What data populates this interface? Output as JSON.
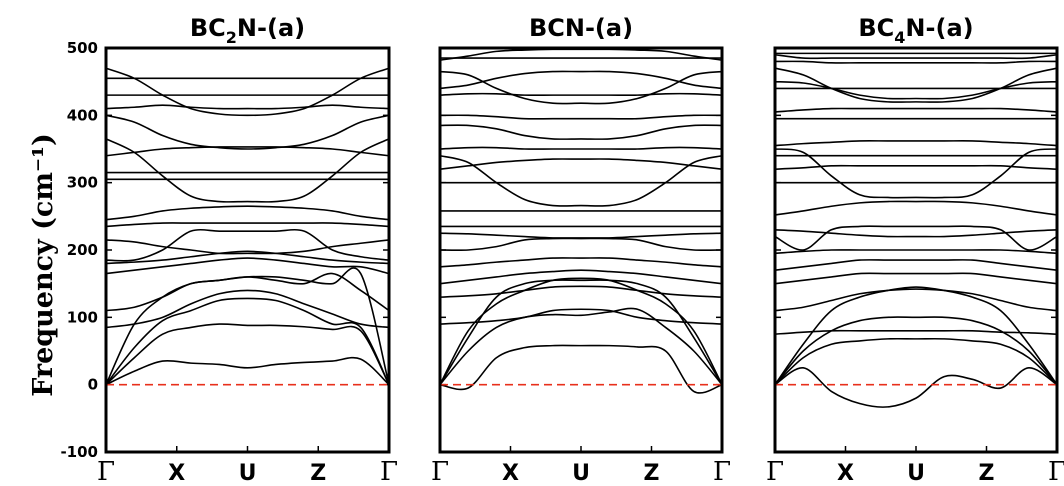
{
  "chart_data": {
    "type": "line",
    "ylabel": "Frequency (cm⁻¹)",
    "ylim": [
      -100,
      500
    ],
    "yticks": [
      "-100",
      "0",
      "100",
      "200",
      "300",
      "400",
      "500"
    ],
    "kpath": [
      "Γ",
      "X",
      "U",
      "Z",
      "Γ"
    ],
    "reference_line": {
      "y": 0,
      "style": "dashed",
      "color": "#e8301c"
    },
    "panels": [
      {
        "title": {
          "base": "BC",
          "sub": "2",
          "rest": "N-(a)"
        },
        "bands": [
          [
            0,
            20,
            35,
            32,
            30,
            25,
            30,
            33,
            35,
            38,
            0
          ],
          [
            0,
            40,
            75,
            85,
            90,
            88,
            88,
            86,
            82,
            80,
            0
          ],
          [
            0,
            55,
            95,
            110,
            125,
            128,
            125,
            110,
            90,
            85,
            0
          ],
          [
            0,
            90,
            130,
            150,
            155,
            160,
            160,
            155,
            150,
            165,
            0
          ],
          [
            85,
            90,
            100,
            120,
            135,
            140,
            135,
            120,
            105,
            90,
            85
          ],
          [
            110,
            115,
            130,
            150,
            155,
            160,
            155,
            150,
            165,
            140,
            110
          ],
          [
            165,
            170,
            175,
            180,
            185,
            188,
            185,
            180,
            175,
            175,
            165
          ],
          [
            180,
            182,
            185,
            190,
            195,
            198,
            195,
            190,
            185,
            182,
            180
          ],
          [
            185,
            185,
            200,
            228,
            228,
            228,
            228,
            228,
            200,
            190,
            185
          ],
          [
            215,
            212,
            205,
            200,
            195,
            195,
            195,
            198,
            205,
            210,
            215
          ],
          [
            235,
            238,
            240,
            240,
            240,
            240,
            240,
            240,
            240,
            238,
            235
          ],
          [
            245,
            250,
            258,
            262,
            264,
            265,
            264,
            262,
            258,
            250,
            245
          ],
          [
            305,
            305,
            305,
            305,
            305,
            305,
            305,
            305,
            305,
            305,
            305
          ],
          [
            315,
            315,
            315,
            315,
            315,
            315,
            315,
            315,
            315,
            315,
            315
          ],
          [
            340,
            345,
            350,
            352,
            353,
            353,
            353,
            352,
            350,
            345,
            340
          ],
          [
            365,
            345,
            310,
            280,
            272,
            272,
            272,
            280,
            310,
            345,
            365
          ],
          [
            400,
            390,
            370,
            357,
            352,
            350,
            352,
            357,
            370,
            390,
            400
          ],
          [
            410,
            412,
            415,
            412,
            410,
            410,
            410,
            412,
            415,
            412,
            410
          ],
          [
            430,
            430,
            430,
            430,
            430,
            430,
            430,
            430,
            430,
            430,
            430
          ],
          [
            455,
            455,
            455,
            455,
            455,
            455,
            455,
            455,
            455,
            455,
            455
          ],
          [
            470,
            455,
            430,
            410,
            402,
            400,
            402,
            410,
            430,
            455,
            470
          ]
        ]
      },
      {
        "title": {
          "base": "BCN-(a)",
          "sub": "",
          "rest": ""
        },
        "bands": [
          [
            0,
            -5,
            40,
            55,
            58,
            58,
            58,
            56,
            50,
            -10,
            0
          ],
          [
            0,
            50,
            85,
            100,
            104,
            103,
            108,
            112,
            85,
            50,
            0
          ],
          [
            0,
            70,
            130,
            150,
            155,
            155,
            155,
            150,
            130,
            70,
            0
          ],
          [
            0,
            80,
            120,
            140,
            155,
            158,
            155,
            140,
            120,
            80,
            0
          ],
          [
            90,
            92,
            95,
            100,
            110,
            112,
            110,
            100,
            95,
            92,
            90
          ],
          [
            130,
            132,
            135,
            140,
            145,
            146,
            145,
            140,
            135,
            132,
            130
          ],
          [
            150,
            155,
            160,
            165,
            168,
            170,
            168,
            165,
            160,
            155,
            150
          ],
          [
            175,
            178,
            182,
            185,
            188,
            188,
            188,
            185,
            182,
            178,
            175
          ],
          [
            200,
            200,
            205,
            215,
            217,
            217,
            217,
            215,
            205,
            200,
            200
          ],
          [
            225,
            224,
            222,
            220,
            218,
            218,
            218,
            220,
            222,
            224,
            225
          ],
          [
            235,
            235,
            235,
            235,
            235,
            235,
            235,
            235,
            235,
            235,
            235
          ],
          [
            258,
            258,
            258,
            258,
            258,
            258,
            258,
            258,
            258,
            258,
            258
          ],
          [
            300,
            300,
            300,
            300,
            300,
            300,
            300,
            300,
            300,
            300,
            300
          ],
          [
            320,
            325,
            330,
            333,
            335,
            335,
            335,
            333,
            330,
            325,
            320
          ],
          [
            340,
            330,
            300,
            275,
            266,
            266,
            266,
            275,
            300,
            330,
            340
          ],
          [
            350,
            352,
            352,
            350,
            350,
            350,
            350,
            350,
            352,
            352,
            350
          ],
          [
            385,
            385,
            380,
            370,
            365,
            365,
            365,
            370,
            380,
            385,
            385
          ],
          [
            400,
            400,
            398,
            395,
            395,
            395,
            395,
            395,
            398,
            400,
            400
          ],
          [
            430,
            432,
            432,
            430,
            430,
            430,
            430,
            430,
            432,
            432,
            430
          ],
          [
            440,
            445,
            455,
            462,
            465,
            465,
            465,
            462,
            455,
            445,
            440
          ],
          [
            465,
            460,
            440,
            425,
            418,
            418,
            418,
            425,
            440,
            460,
            465
          ],
          [
            485,
            485,
            485,
            485,
            485,
            485,
            485,
            485,
            485,
            485,
            485
          ],
          [
            482,
            488,
            495,
            497,
            498,
            498,
            498,
            497,
            495,
            488,
            482
          ]
        ]
      },
      {
        "title": {
          "base": "BC",
          "sub": "4",
          "rest": "N-(a)"
        },
        "bands": [
          [
            0,
            25,
            -10,
            -28,
            -33,
            -20,
            12,
            8,
            -5,
            25,
            0
          ],
          [
            0,
            40,
            60,
            65,
            68,
            68,
            68,
            65,
            60,
            40,
            0
          ],
          [
            0,
            50,
            80,
            95,
            100,
            100,
            100,
            95,
            80,
            50,
            0
          ],
          [
            0,
            60,
            110,
            130,
            140,
            145,
            140,
            130,
            110,
            60,
            0
          ],
          [
            75,
            78,
            80,
            80,
            80,
            80,
            80,
            80,
            78,
            77,
            75
          ],
          [
            110,
            115,
            125,
            135,
            140,
            142,
            140,
            135,
            125,
            115,
            110
          ],
          [
            150,
            155,
            160,
            165,
            165,
            165,
            165,
            165,
            160,
            155,
            150
          ],
          [
            170,
            175,
            180,
            185,
            185,
            185,
            185,
            185,
            180,
            175,
            170
          ],
          [
            195,
            198,
            200,
            200,
            200,
            200,
            200,
            200,
            200,
            198,
            195
          ],
          [
            220,
            200,
            230,
            235,
            235,
            235,
            235,
            235,
            230,
            200,
            220
          ],
          [
            230,
            228,
            225,
            222,
            220,
            220,
            220,
            222,
            225,
            228,
            230
          ],
          [
            252,
            258,
            265,
            270,
            272,
            272,
            272,
            270,
            265,
            258,
            252
          ],
          [
            300,
            300,
            300,
            300,
            300,
            300,
            300,
            300,
            300,
            300,
            300
          ],
          [
            320,
            322,
            325,
            325,
            325,
            325,
            325,
            325,
            325,
            322,
            320
          ],
          [
            340,
            340,
            340,
            340,
            340,
            340,
            340,
            340,
            340,
            340,
            340
          ],
          [
            350,
            345,
            310,
            282,
            278,
            278,
            278,
            282,
            310,
            345,
            350
          ],
          [
            355,
            358,
            360,
            362,
            362,
            362,
            362,
            362,
            360,
            358,
            355
          ],
          [
            395,
            395,
            395,
            395,
            395,
            395,
            395,
            395,
            395,
            395,
            395
          ],
          [
            405,
            408,
            410,
            410,
            410,
            410,
            410,
            410,
            410,
            408,
            405
          ],
          [
            440,
            440,
            440,
            440,
            440,
            440,
            440,
            440,
            440,
            440,
            440
          ],
          [
            450,
            448,
            440,
            430,
            425,
            425,
            425,
            430,
            440,
            448,
            450
          ],
          [
            470,
            460,
            440,
            425,
            420,
            420,
            420,
            425,
            440,
            460,
            470
          ],
          [
            480,
            480,
            478,
            478,
            478,
            478,
            478,
            478,
            478,
            480,
            480
          ],
          [
            490,
            485,
            485,
            485,
            485,
            485,
            485,
            485,
            485,
            485,
            490
          ],
          [
            492,
            492,
            492,
            492,
            492,
            492,
            492,
            492,
            492,
            492,
            492
          ]
        ]
      }
    ]
  }
}
